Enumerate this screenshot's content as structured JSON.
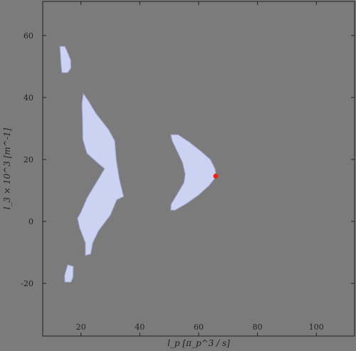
{
  "chart_data": {
    "type": "area",
    "title": "",
    "xlabel": "l_p [π_p^3 / s]",
    "ylabel": "l_3 × 10^3 [m^-1]",
    "xlim": [
      7,
      113
    ],
    "ylim": [
      -37,
      71
    ],
    "xticks": [
      "20",
      "40",
      "60",
      "80",
      "100"
    ],
    "yticks": [
      "-20",
      "0",
      "20",
      "40",
      "60"
    ],
    "grid": false,
    "region_color": "#ccd2f2",
    "marker_color": "#ee2211",
    "regions": [
      {
        "points": [
          [
            12.8,
            56.5
          ],
          [
            14.5,
            56.5
          ],
          [
            15.5,
            54.5
          ],
          [
            16.5,
            52
          ],
          [
            16.6,
            49.5
          ],
          [
            15.5,
            48
          ],
          [
            13.5,
            48
          ],
          [
            13.2,
            51
          ],
          [
            13,
            54
          ]
        ]
      },
      {
        "points": [
          [
            20.8,
            41.3
          ],
          [
            22.5,
            39
          ],
          [
            25,
            35
          ],
          [
            29.5,
            29.5
          ],
          [
            31.5,
            26
          ],
          [
            32,
            20
          ],
          [
            33,
            14
          ],
          [
            34.5,
            8
          ],
          [
            32.2,
            7
          ],
          [
            30,
            2
          ],
          [
            26,
            -3
          ],
          [
            24,
            -7
          ],
          [
            23.3,
            -10.5
          ],
          [
            21.5,
            -11
          ],
          [
            21.5,
            -7
          ],
          [
            19.5,
            -2
          ],
          [
            18.8,
            1
          ],
          [
            20,
            3
          ],
          [
            22,
            7.5
          ],
          [
            25.5,
            13
          ],
          [
            28,
            17
          ],
          [
            25.5,
            19
          ],
          [
            22,
            22
          ],
          [
            20.6,
            26.5
          ],
          [
            20.5,
            33
          ],
          [
            20.3,
            38
          ]
        ]
      },
      {
        "points": [
          [
            15.5,
            -14
          ],
          [
            17.4,
            -14.5
          ],
          [
            17.3,
            -18
          ],
          [
            16.6,
            -19.6
          ],
          [
            14.5,
            -19.6
          ],
          [
            14.4,
            -17.5
          ]
        ]
      },
      {
        "points": [
          [
            50.5,
            28
          ],
          [
            53,
            28
          ],
          [
            57,
            25.5
          ],
          [
            61,
            22.5
          ],
          [
            64,
            20
          ],
          [
            65.6,
            17
          ],
          [
            66,
            14.5
          ],
          [
            63.5,
            11.5
          ],
          [
            60,
            8.5
          ],
          [
            56,
            5.8
          ],
          [
            52,
            3.6
          ],
          [
            50.5,
            3.6
          ],
          [
            50.6,
            5.5
          ],
          [
            52.5,
            8.5
          ],
          [
            55,
            12.5
          ],
          [
            55.4,
            15.2
          ],
          [
            54.5,
            19
          ],
          [
            52.5,
            23
          ],
          [
            51,
            26
          ]
        ]
      }
    ],
    "points": [
      {
        "x": 65.8,
        "y": 14.6
      }
    ]
  }
}
